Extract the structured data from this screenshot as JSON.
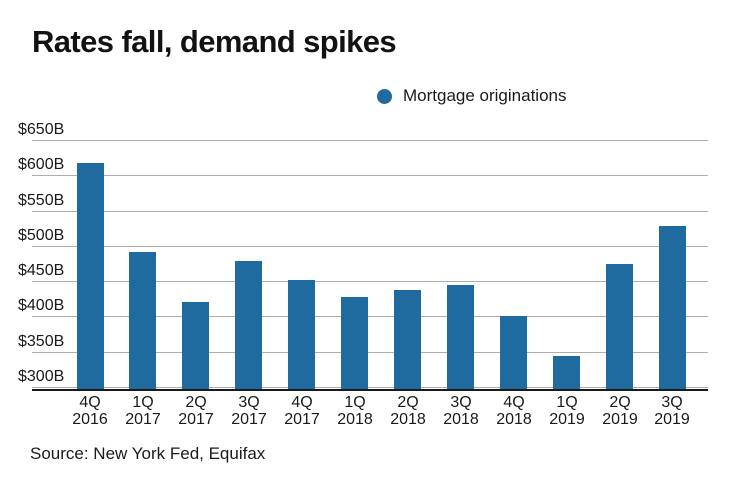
{
  "title": "Rates fall, demand spikes",
  "legend": {
    "label": "Mortgage originations",
    "marker_color": "#1f6a9e"
  },
  "source": "Source: New York Fed, Equifax",
  "chart_data": {
    "type": "bar",
    "title": "Rates fall, demand spikes",
    "series_name": "Mortgage originations",
    "unit": "$B",
    "categories": [
      "4Q 2016",
      "1Q 2017",
      "2Q 2017",
      "3Q 2017",
      "4Q 2017",
      "1Q 2018",
      "2Q 2018",
      "3Q 2018",
      "4Q 2018",
      "1Q 2019",
      "2Q 2019",
      "3Q 2019"
    ],
    "values": [
      617,
      491,
      421,
      479,
      452,
      428,
      437,
      445,
      401,
      344,
      474,
      528
    ],
    "y_tick_labels": [
      "$650B",
      "$600B",
      "$550B",
      "$500B",
      "$450B",
      "$400B",
      "$350B",
      "$300B"
    ],
    "y_tick_values": [
      650,
      600,
      550,
      500,
      450,
      400,
      350,
      300
    ],
    "ylim": [
      300,
      650
    ],
    "xlabel": "",
    "ylabel": "",
    "grid": true,
    "legend_position": "top-right",
    "bar_color": "#1f6a9e",
    "gridline_color": "#adadad",
    "axis_line_color": "#1a1a1a"
  }
}
